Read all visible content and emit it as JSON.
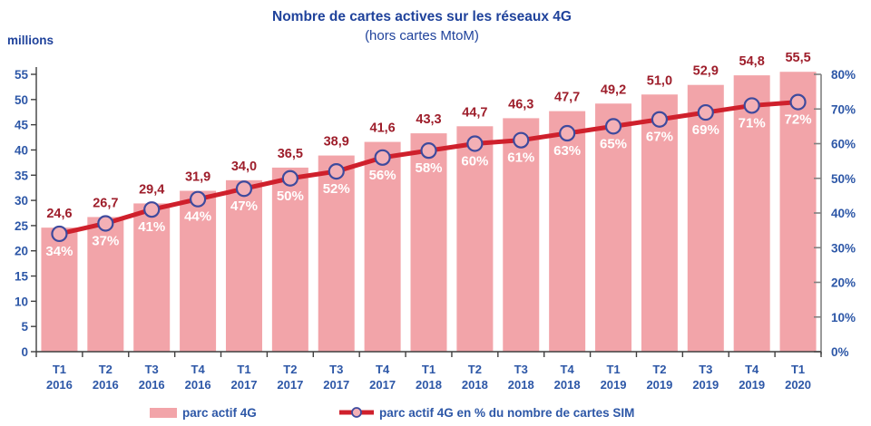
{
  "header": {
    "title": "Nombre de cartes actives sur les réseaux  4G",
    "subtitle": "(hors cartes MtoM)"
  },
  "chart_data": {
    "type": "bar",
    "title": "Nombre de cartes actives sur les réseaux  4G",
    "subtitle": "(hors cartes MtoM)",
    "left_axis": {
      "label": "millions",
      "min": 0,
      "max": 55,
      "step": 5,
      "ticks": [
        "0",
        "5",
        "10",
        "15",
        "20",
        "25",
        "30",
        "35",
        "40",
        "45",
        "50",
        "55"
      ]
    },
    "right_axis": {
      "min": 0,
      "max": 80,
      "step": 10,
      "ticks": [
        "0%",
        "10%",
        "20%",
        "30%",
        "40%",
        "50%",
        "60%",
        "70%",
        "80%"
      ]
    },
    "categories": [
      "T1 2016",
      "T2 2016",
      "T3 2016",
      "T4 2016",
      "T1 2017",
      "T2 2017",
      "T3 2017",
      "T4 2017",
      "T1 2018",
      "T2 2018",
      "T3 2018",
      "T4 2018",
      "T1 2019",
      "T2 2019",
      "T3 2019",
      "T4 2019",
      "T1 2020"
    ],
    "series": [
      {
        "name": "parc actif 4G",
        "type": "bar",
        "axis": "left",
        "values": [
          24.6,
          26.7,
          29.4,
          31.9,
          34.0,
          36.5,
          38.9,
          41.6,
          43.3,
          44.7,
          46.3,
          47.7,
          49.2,
          51.0,
          52.9,
          54.8,
          55.5
        ],
        "labels": [
          "24,6",
          "26,7",
          "29,4",
          "31,9",
          "34,0",
          "36,5",
          "38,9",
          "41,6",
          "43,3",
          "44,7",
          "46,3",
          "47,7",
          "49,2",
          "51,0",
          "52,9",
          "54,8",
          "55,5"
        ]
      },
      {
        "name": "parc actif 4G en % du nombre de cartes SIM",
        "type": "line",
        "axis": "right",
        "values": [
          34,
          37,
          41,
          44,
          47,
          50,
          52,
          56,
          58,
          60,
          61,
          63,
          65,
          67,
          69,
          71,
          72
        ],
        "labels": [
          "34%",
          "37%",
          "41%",
          "44%",
          "47%",
          "50%",
          "52%",
          "56%",
          "58%",
          "60%",
          "61%",
          "63%",
          "65%",
          "67%",
          "69%",
          "71%",
          "72%"
        ]
      }
    ],
    "legend": [
      "parc actif 4G",
      "parc actif 4G en % du nombre de cartes SIM"
    ],
    "colors": {
      "bar": "#F2A4A9",
      "line": "#CF202C",
      "marker_fill": "#F3B0B6",
      "marker_stroke": "#3E4A9D",
      "value_label": "#9E1E2B",
      "pct_label": "#FFFFFF",
      "title_text": "#1F429B",
      "tick_text": "#2D57A7",
      "axis_dark": "#3F3F3F",
      "axis_gray": "#808080"
    }
  }
}
